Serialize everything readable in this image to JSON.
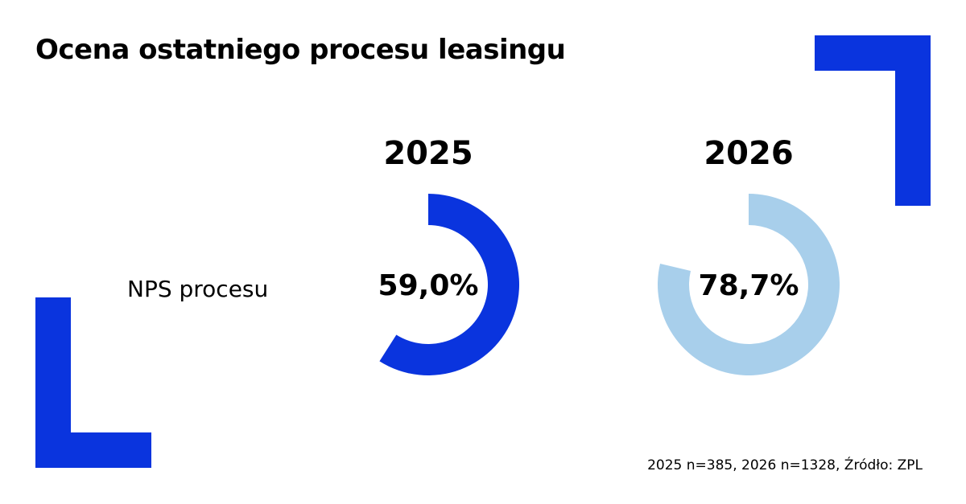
{
  "title": "Ocena ostatniego procesu leasingu",
  "footnote": "2025 n=385, 2026 n=1328, Źródło: ZPL",
  "colors": {
    "series_2025": "#0A34DE",
    "series_2026": "#A8CFEB",
    "accent": "#0A34DE"
  },
  "chart_data": {
    "type": "pie",
    "variant": "donut",
    "title": "Ocena ostatniego procesu leasingu",
    "row_label": "NPS procesu",
    "series": [
      {
        "name": "2025",
        "value": 59.0,
        "label": "59,0%",
        "color": "#0A34DE"
      },
      {
        "name": "2026",
        "value": 78.7,
        "label": "78,7%",
        "color": "#A8CFEB"
      }
    ],
    "unit": "%",
    "max": 100
  }
}
